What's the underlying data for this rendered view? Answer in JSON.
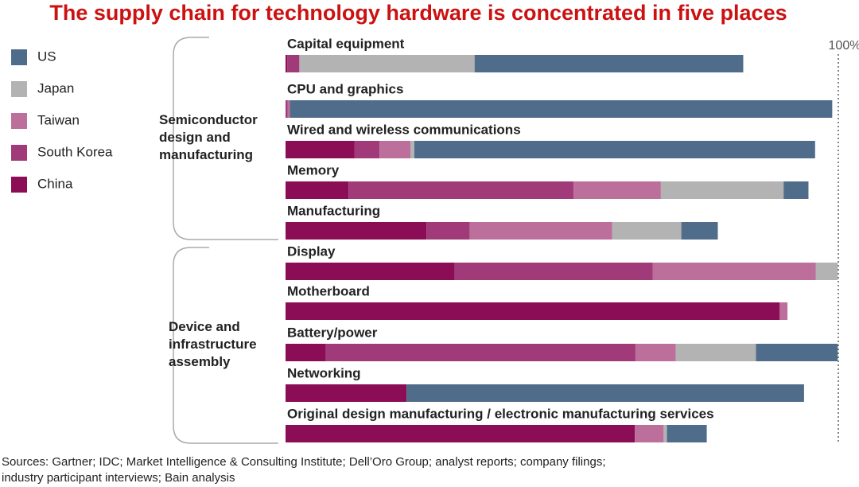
{
  "chart_data": {
    "type": "stacked-bar-horizontal",
    "title": "The supply chain for technology hardware is concentrated in five places",
    "categories": [
      "Capital equipment",
      "CPU and graphics",
      "Wired and wireless communications",
      "Memory",
      "Manufacturing",
      "Display",
      "Motherboard",
      "Battery/power",
      "Networking",
      "Original design manufacturing / electronic manufacturing services"
    ],
    "groups": [
      {
        "label": "Semiconductor design and manufacturing"
      },
      {
        "label": "Device and infrastructure assembly"
      }
    ],
    "series": [
      {
        "name": "US",
        "color": "#4f6d8a",
        "values": [
          48.6,
          98.1,
          72.5,
          4.5,
          6.6,
          0,
          0,
          14.8,
          71.9,
          7.2
        ]
      },
      {
        "name": "Japan",
        "color": "#b3b3b3",
        "values": [
          31.7,
          0,
          0.7,
          22.2,
          12.5,
          4.0,
          0,
          14.5,
          0,
          0.6
        ]
      },
      {
        "name": "Taiwan",
        "color": "#bd6f9b",
        "values": [
          0,
          0.4,
          5.6,
          15.8,
          25.8,
          29.5,
          1.4,
          7.3,
          0,
          5.2
        ]
      },
      {
        "name": "South Korea",
        "color": "#a03a78",
        "values": [
          2.2,
          0.4,
          4.5,
          40.7,
          7.8,
          35.8,
          0,
          56.0,
          0,
          0
        ]
      },
      {
        "name": "China",
        "color": "#8b0d55",
        "values": [
          0.3,
          0,
          12.5,
          11.4,
          25.5,
          30.6,
          89.4,
          7.3,
          21.9,
          63.2
        ]
      }
    ],
    "xlim": [
      0,
      100
    ],
    "xticks": [
      {
        "value": 100,
        "label": "100%"
      }
    ],
    "source": [
      "Sources: Gartner; IDC; Market Intelligence & Consulting Institute; Dell’Oro Group; analyst reports; company filings;",
      "industry participant interviews; Bain analysis"
    ]
  }
}
